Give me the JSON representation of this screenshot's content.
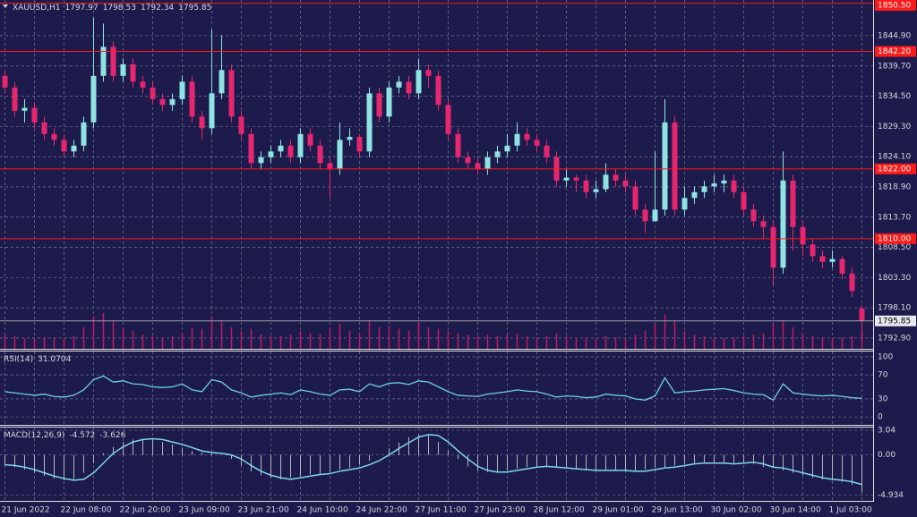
{
  "chart_data": [
    {
      "type": "candlestick",
      "title": "XAUUSD,H1",
      "categories": [
        "21 Jun 2022",
        null,
        null,
        null,
        null,
        null,
        "22 Jun 08:00",
        null,
        null,
        null,
        null,
        null,
        "22 Jun 20:00",
        null,
        null,
        null,
        null,
        null,
        "23 Jun 09:00",
        null,
        null,
        null,
        null,
        null,
        "23 Jun 21:00",
        null,
        null,
        null,
        null,
        null,
        "24 Jun 10:00",
        null,
        null,
        null,
        null,
        null,
        "24 Jun 22:00",
        null,
        null,
        null,
        null,
        null,
        "27 Jun 11:00",
        null,
        null,
        null,
        null,
        null,
        "27 Jun 23:00",
        null,
        null,
        null,
        null,
        null,
        "28 Jun 12:00",
        null,
        null,
        null,
        null,
        null,
        "29 Jun 01:00",
        null,
        null,
        null,
        null,
        null,
        "29 Jun 13:00",
        null,
        null,
        null,
        null,
        null,
        "30 Jun 02:00",
        null,
        null,
        null,
        null,
        null,
        "30 Jun 14:00",
        null,
        null,
        null,
        null,
        null,
        "1 Jul 03:00",
        null,
        null,
        null
      ],
      "open": [
        1838,
        1836,
        1832,
        1832.5,
        1830,
        1828,
        1827,
        1825,
        1826,
        1830,
        1838,
        1843,
        1838,
        1840,
        1837,
        1836,
        1834,
        1833,
        1834,
        1837,
        1831,
        1829,
        1835,
        1839,
        1831,
        1828,
        1823,
        1824,
        1825,
        1826,
        1824,
        1828,
        1826,
        1823,
        1822,
        1827,
        1827.5,
        1825,
        1835,
        1831,
        1836,
        1837,
        1835,
        1839,
        1838,
        1833,
        1828,
        1824,
        1823,
        1822,
        1824,
        1825,
        1826,
        1828,
        1827,
        1826,
        1824,
        1820,
        1820.5,
        1820,
        1818,
        1818.5,
        1821,
        1820,
        1819,
        1815,
        1813,
        1815,
        1830,
        1815,
        1817,
        1818,
        1819,
        1819.5,
        1820,
        1818,
        1815,
        1813,
        1812,
        1805,
        1820,
        1812,
        1809,
        1807,
        1806,
        1806.5,
        1804,
        1797.97
      ],
      "high": [
        1839,
        1837,
        1834,
        1833.5,
        1831,
        1829,
        1828,
        1827,
        1831,
        1848,
        1847,
        1844,
        1841,
        1841,
        1838,
        1837,
        1835,
        1835,
        1838,
        1838,
        1832,
        1846,
        1845,
        1840,
        1832,
        1829,
        1825,
        1826,
        1827,
        1827,
        1829,
        1829,
        1827,
        1824,
        1830,
        1829,
        1828,
        1836,
        1836,
        1837,
        1838,
        1838,
        1841,
        1840,
        1839,
        1834,
        1829,
        1825,
        1824,
        1825,
        1826,
        1828,
        1830,
        1829,
        1828,
        1827,
        1825,
        1822,
        1821,
        1821,
        1820,
        1823,
        1822,
        1821,
        1820,
        1816,
        1825,
        1834,
        1831,
        1819,
        1819,
        1820,
        1821,
        1821,
        1821,
        1819,
        1816,
        1814,
        1813,
        1825,
        1821,
        1813,
        1810,
        1808,
        1808,
        1807,
        1805,
        1798.53
      ],
      "low": [
        1835,
        1831,
        1830,
        1829,
        1827,
        1826,
        1824,
        1824,
        1825,
        1829,
        1837,
        1837,
        1837,
        1836,
        1835,
        1833,
        1832,
        1832,
        1833,
        1830,
        1827,
        1828,
        1834,
        1830,
        1827,
        1822,
        1822,
        1823,
        1824,
        1823,
        1823,
        1825,
        1822,
        1817,
        1821,
        1826,
        1824,
        1824,
        1830,
        1830,
        1835,
        1834,
        1834,
        1836,
        1832,
        1827,
        1823,
        1822,
        1821,
        1821,
        1823,
        1824,
        1825,
        1826,
        1825,
        1823,
        1819,
        1819,
        1818,
        1817,
        1817,
        1818,
        1819,
        1818,
        1814,
        1811,
        1813,
        1814,
        1814,
        1814,
        1816,
        1817,
        1818,
        1818,
        1817,
        1814,
        1812,
        1810,
        1802,
        1804,
        1808,
        1807,
        1806,
        1805,
        1805,
        1803,
        1800,
        1792.34
      ],
      "close": [
        1836,
        1832,
        1832.5,
        1830,
        1828,
        1827,
        1825,
        1826,
        1830,
        1838,
        1843,
        1838,
        1840,
        1837,
        1836,
        1834,
        1833,
        1834,
        1837,
        1831,
        1829,
        1835,
        1839,
        1831,
        1828,
        1823,
        1824,
        1825,
        1826,
        1824,
        1828,
        1826,
        1823,
        1822,
        1827,
        1827.5,
        1825,
        1835,
        1831,
        1836,
        1837,
        1835,
        1839,
        1838,
        1833,
        1828,
        1824,
        1823,
        1822,
        1824,
        1825,
        1826,
        1828,
        1827,
        1826,
        1824,
        1820,
        1820.5,
        1820,
        1818,
        1818.5,
        1821,
        1820,
        1819,
        1815,
        1813,
        1815,
        1830,
        1815,
        1817,
        1818,
        1819,
        1819.5,
        1820,
        1818,
        1815,
        1813,
        1812,
        1805,
        1820,
        1812,
        1809,
        1807,
        1806,
        1806.5,
        1804,
        1801,
        1795.85
      ],
      "volume": [
        20,
        18,
        15,
        14,
        16,
        15,
        14,
        18,
        30,
        45,
        50,
        40,
        30,
        25,
        20,
        18,
        16,
        18,
        22,
        30,
        28,
        45,
        40,
        30,
        25,
        28,
        20,
        18,
        18,
        20,
        25,
        22,
        20,
        30,
        35,
        25,
        22,
        40,
        30,
        32,
        28,
        25,
        38,
        30,
        28,
        25,
        22,
        20,
        18,
        20,
        18,
        20,
        22,
        18,
        16,
        18,
        22,
        18,
        15,
        16,
        15,
        18,
        16,
        15,
        20,
        25,
        35,
        48,
        40,
        25,
        20,
        18,
        16,
        15,
        16,
        18,
        20,
        22,
        35,
        40,
        30,
        22,
        18,
        16,
        15,
        16,
        18,
        25
      ],
      "up_color": "#8fe3e3",
      "down_color": "#e8266f",
      "volume_color": "#c2186b",
      "ylim": [
        1791.05,
        1851.05
      ],
      "yticks": [
        {
          "value": 1844.9,
          "label": "1844.90"
        },
        {
          "value": 1839.7,
          "label": "1839.70"
        },
        {
          "value": 1834.5,
          "label": "1834.50"
        },
        {
          "value": 1829.3,
          "label": "1829.30"
        },
        {
          "value": 1824.1,
          "label": "1824.10"
        },
        {
          "value": 1818.9,
          "label": "1818.90"
        },
        {
          "value": 1813.7,
          "label": "1813.70"
        },
        {
          "value": 1808.5,
          "label": "1808.50"
        },
        {
          "value": 1803.3,
          "label": "1803.30"
        },
        {
          "value": 1798.1,
          "label": "1798.10"
        },
        {
          "value": 1792.9,
          "label": "1792.90"
        }
      ],
      "levels": [
        {
          "value": 1850.5,
          "label": "1850.50"
        },
        {
          "value": 1842.2,
          "label": "1842.20"
        },
        {
          "value": 1822,
          "label": "1822.00"
        },
        {
          "value": 1810,
          "label": "1810.00"
        }
      ],
      "level_color": "#ff1a1a",
      "grid": true
    },
    {
      "type": "line",
      "title": "RSI(14)",
      "values": [
        42,
        40,
        38,
        36,
        38,
        34,
        33,
        36,
        45,
        62,
        68,
        58,
        60,
        55,
        54,
        50,
        49,
        50,
        55,
        45,
        42,
        62,
        58,
        45,
        40,
        33,
        36,
        38,
        40,
        37,
        45,
        42,
        38,
        36,
        45,
        46,
        42,
        55,
        50,
        56,
        57,
        54,
        60,
        58,
        50,
        42,
        36,
        35,
        34,
        38,
        40,
        42,
        45,
        43,
        42,
        38,
        33,
        35,
        34,
        32,
        33,
        38,
        36,
        35,
        30,
        28,
        35,
        65,
        40,
        42,
        43,
        45,
        46,
        47,
        44,
        40,
        38,
        37,
        28,
        55,
        40,
        38,
        36,
        35,
        36,
        34,
        32,
        31.0704
      ],
      "color": "#6fd0e0",
      "ylim": [
        -13.2,
        108.8
      ],
      "yticks": [
        100,
        70,
        30,
        0
      ],
      "grid": true
    },
    {
      "type": "macd",
      "title": "MACD(12,26,9)",
      "histogram": [
        -1.3,
        -1.5,
        -1.8,
        -2.2,
        -2.6,
        -2.9,
        -3.1,
        -3.0,
        -2.2,
        -1.0,
        0.2,
        1.0,
        1.6,
        1.9,
        2.0,
        1.9,
        1.6,
        1.3,
        0.9,
        0.5,
        0.3,
        0.2,
        0.0,
        -0.5,
        -1.3,
        -2.0,
        -2.5,
        -2.8,
        -3.0,
        -2.8,
        -2.6,
        -2.4,
        -2.3,
        -2.0,
        -1.8,
        -1.6,
        -1.2,
        -0.7,
        0.0,
        0.8,
        1.5,
        2.2,
        2.5,
        2.4,
        1.6,
        0.5,
        -0.5,
        -1.4,
        -1.9,
        -2.1,
        -2.1,
        -1.9,
        -1.7,
        -1.5,
        -1.4,
        -1.5,
        -1.6,
        -1.7,
        -1.8,
        -1.9,
        -1.9,
        -1.9,
        -1.9,
        -2.0,
        -2.0,
        -1.8,
        -1.6,
        -1.5,
        -1.3,
        -1.1,
        -1.0,
        -1.0,
        -1.0,
        -1.1,
        -1.0,
        -0.9,
        -1.1,
        -1.5,
        -1.6,
        -1.9,
        -2.2,
        -2.5,
        -2.8,
        -3.0,
        -3.1,
        -3.3,
        -3.626,
        -4.572
      ],
      "signal": [
        -1.2,
        -1.3,
        -1.5,
        -1.8,
        -2.2,
        -2.6,
        -2.9,
        -3.1,
        -3.0,
        -2.2,
        -1.0,
        0.2,
        1.0,
        1.6,
        1.9,
        2.0,
        1.9,
        1.6,
        1.3,
        0.9,
        0.5,
        0.3,
        0.2,
        0.0,
        -0.5,
        -1.3,
        -2.0,
        -2.5,
        -2.8,
        -3.0,
        -2.8,
        -2.6,
        -2.4,
        -2.3,
        -2.0,
        -1.8,
        -1.6,
        -1.2,
        -0.7,
        0.0,
        0.8,
        1.5,
        2.2,
        2.5,
        2.4,
        1.6,
        0.5,
        -0.5,
        -1.4,
        -1.9,
        -2.1,
        -2.1,
        -1.9,
        -1.7,
        -1.5,
        -1.4,
        -1.5,
        -1.6,
        -1.7,
        -1.8,
        -1.9,
        -1.9,
        -1.9,
        -1.9,
        -2.0,
        -2.0,
        -1.8,
        -1.6,
        -1.5,
        -1.3,
        -1.1,
        -1.0,
        -1.0,
        -1.0,
        -1.1,
        -1.0,
        -0.9,
        -1.1,
        -1.5,
        -1.6,
        -1.9,
        -2.2,
        -2.5,
        -2.8,
        -3.0,
        -3.1,
        -3.3,
        -3.626
      ],
      "histogram_color": "#b4b4c8",
      "signal_color": "#7fd6ea",
      "ylim": [
        -5.65,
        3.37
      ],
      "yticks": [
        3.04,
        {
          "value": 0,
          "label": "0.00"
        },
        -4.934
      ],
      "grid": true
    }
  ]
}
